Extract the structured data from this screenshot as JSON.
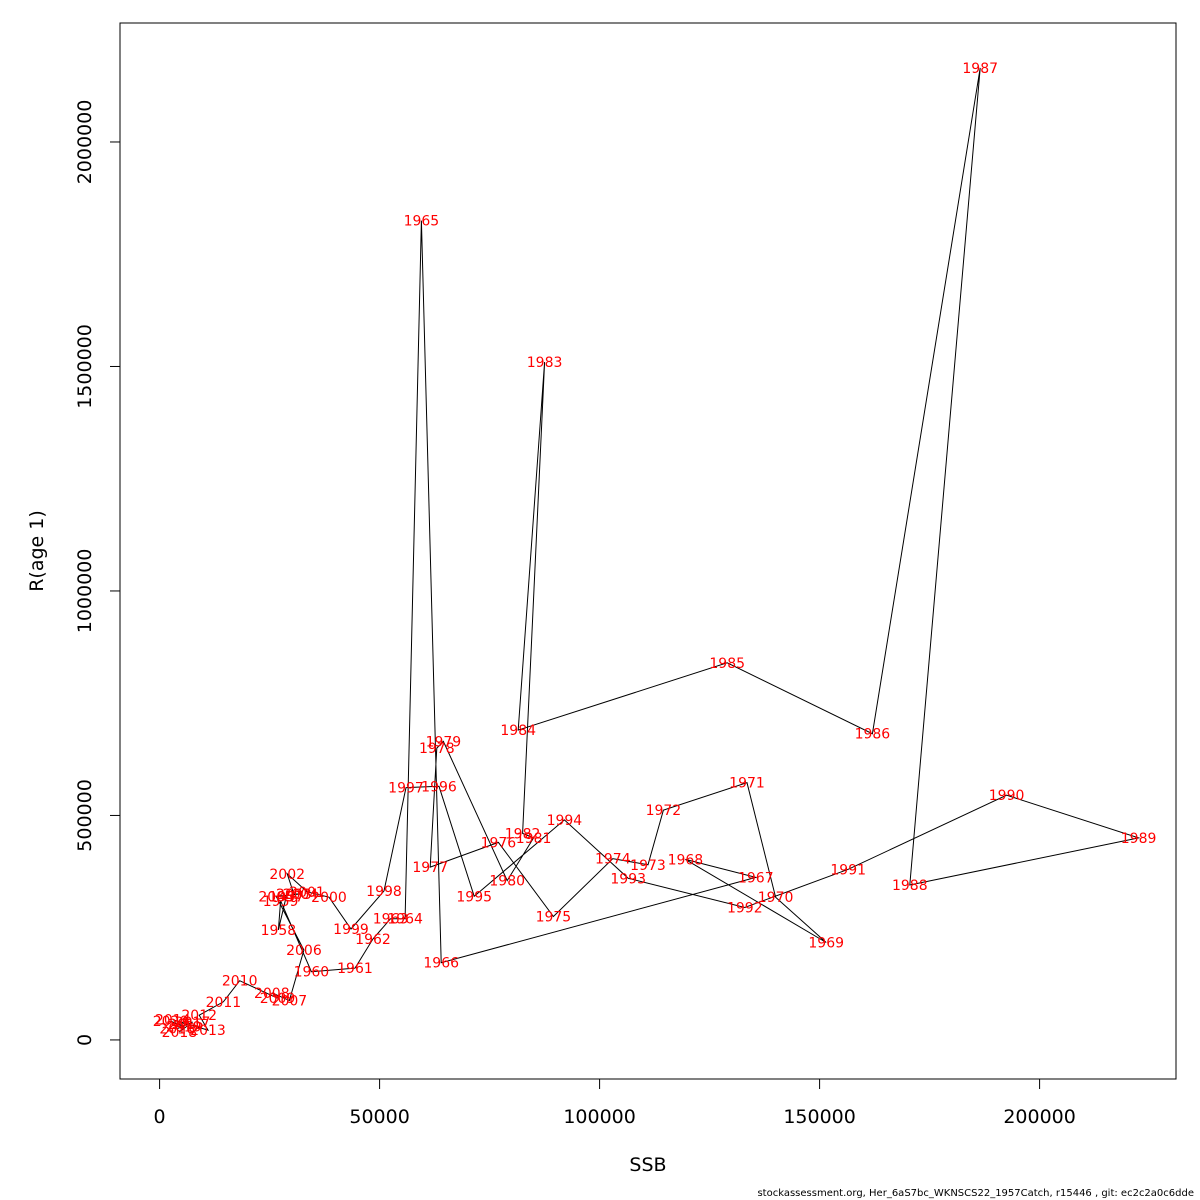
{
  "chart_data": {
    "type": "line",
    "title": "",
    "xlabel": "SSB",
    "ylabel": "R(age 1)",
    "xlim": [
      -9000,
      231000
    ],
    "ylim": [
      -87000,
      2265000
    ],
    "xticks": [
      0,
      50000,
      100000,
      150000,
      200000
    ],
    "yticks": [
      0,
      500000,
      1000000,
      1500000,
      2000000
    ],
    "xtick_labels": [
      "0",
      "50000",
      "100000",
      "150000",
      "200000"
    ],
    "ytick_labels": [
      "0",
      "500000",
      "1000000",
      "1500000",
      "2000000"
    ],
    "grid": false,
    "legend": "none",
    "label_color": "#ff0000",
    "line_color": "#000000",
    "points": [
      {
        "year": "1957",
        "x": 28800,
        "y": 320000
      },
      {
        "year": "1958",
        "x": 27000,
        "y": 245000
      },
      {
        "year": "1959",
        "x": 27500,
        "y": 310000
      },
      {
        "year": "1960",
        "x": 34500,
        "y": 152000
      },
      {
        "year": "1961",
        "x": 44400,
        "y": 160000
      },
      {
        "year": "1962",
        "x": 48500,
        "y": 225000
      },
      {
        "year": "1963",
        "x": 52500,
        "y": 270000
      },
      {
        "year": "1964",
        "x": 55800,
        "y": 270000
      },
      {
        "year": "1965",
        "x": 59500,
        "y": 1825000
      },
      {
        "year": "1966",
        "x": 64000,
        "y": 172000
      },
      {
        "year": "1967",
        "x": 135500,
        "y": 362000
      },
      {
        "year": "1968",
        "x": 119500,
        "y": 402000
      },
      {
        "year": "1969",
        "x": 151500,
        "y": 217000
      },
      {
        "year": "1970",
        "x": 140000,
        "y": 318000
      },
      {
        "year": "1971",
        "x": 133500,
        "y": 573000
      },
      {
        "year": "1972",
        "x": 114500,
        "y": 512000
      },
      {
        "year": "1973",
        "x": 111000,
        "y": 390000
      },
      {
        "year": "1974",
        "x": 103000,
        "y": 404000
      },
      {
        "year": "1975",
        "x": 89500,
        "y": 275000
      },
      {
        "year": "1976",
        "x": 77000,
        "y": 440000
      },
      {
        "year": "1977",
        "x": 61500,
        "y": 385000
      },
      {
        "year": "1978",
        "x": 63000,
        "y": 650000
      },
      {
        "year": "1979",
        "x": 64500,
        "y": 665000
      },
      {
        "year": "1980",
        "x": 79000,
        "y": 355000
      },
      {
        "year": "1981",
        "x": 85000,
        "y": 450000
      },
      {
        "year": "1982",
        "x": 82500,
        "y": 460000
      },
      {
        "year": "1983",
        "x": 87500,
        "y": 1510000
      },
      {
        "year": "1984",
        "x": 81500,
        "y": 690000
      },
      {
        "year": "1985",
        "x": 129000,
        "y": 840000
      },
      {
        "year": "1986",
        "x": 162000,
        "y": 682000
      },
      {
        "year": "1987",
        "x": 186500,
        "y": 2165000
      },
      {
        "year": "1988",
        "x": 170500,
        "y": 345000
      },
      {
        "year": "1989",
        "x": 222500,
        "y": 450000
      },
      {
        "year": "1990",
        "x": 192500,
        "y": 545000
      },
      {
        "year": "1991",
        "x": 156500,
        "y": 380000
      },
      {
        "year": "1992",
        "x": 133000,
        "y": 295000
      },
      {
        "year": "1993",
        "x": 106500,
        "y": 360000
      },
      {
        "year": "1994",
        "x": 92000,
        "y": 490000
      },
      {
        "year": "1995",
        "x": 71500,
        "y": 320000
      },
      {
        "year": "1996",
        "x": 63500,
        "y": 565000
      },
      {
        "year": "1997",
        "x": 56000,
        "y": 562000
      },
      {
        "year": "1998",
        "x": 51000,
        "y": 332000
      },
      {
        "year": "1999",
        "x": 43500,
        "y": 247000
      },
      {
        "year": "2000",
        "x": 38500,
        "y": 318000
      },
      {
        "year": "2001",
        "x": 33500,
        "y": 330000
      },
      {
        "year": "2002",
        "x": 29000,
        "y": 370000
      },
      {
        "year": "2003",
        "x": 30500,
        "y": 325000
      },
      {
        "year": "2004",
        "x": 32000,
        "y": 325000
      },
      {
        "year": "2005",
        "x": 26500,
        "y": 320000
      },
      {
        "year": "2006",
        "x": 32800,
        "y": 200000
      },
      {
        "year": "2007",
        "x": 29500,
        "y": 88000
      },
      {
        "year": "2008",
        "x": 25500,
        "y": 105000
      },
      {
        "year": "2009",
        "x": 26800,
        "y": 93000
      },
      {
        "year": "2010",
        "x": 18200,
        "y": 132000
      },
      {
        "year": "2011",
        "x": 14500,
        "y": 85000
      },
      {
        "year": "2012",
        "x": 9000,
        "y": 55000
      },
      {
        "year": "2013",
        "x": 11000,
        "y": 22000
      },
      {
        "year": "2014",
        "x": 3000,
        "y": 45000
      },
      {
        "year": "2015",
        "x": 6000,
        "y": 35000
      },
      {
        "year": "2016",
        "x": 4000,
        "y": 25000
      },
      {
        "year": "2017",
        "x": 7500,
        "y": 40000
      },
      {
        "year": "2018",
        "x": 4500,
        "y": 18000
      },
      {
        "year": "2019",
        "x": 5500,
        "y": 30000
      },
      {
        "year": "2020",
        "x": 2500,
        "y": 42000
      }
    ]
  },
  "footer": {
    "text": "stockassessment.org, Her_6aS7bc_WKNSCS22_1957Catch, r15446 , git: ec2c2a0c6dde"
  }
}
